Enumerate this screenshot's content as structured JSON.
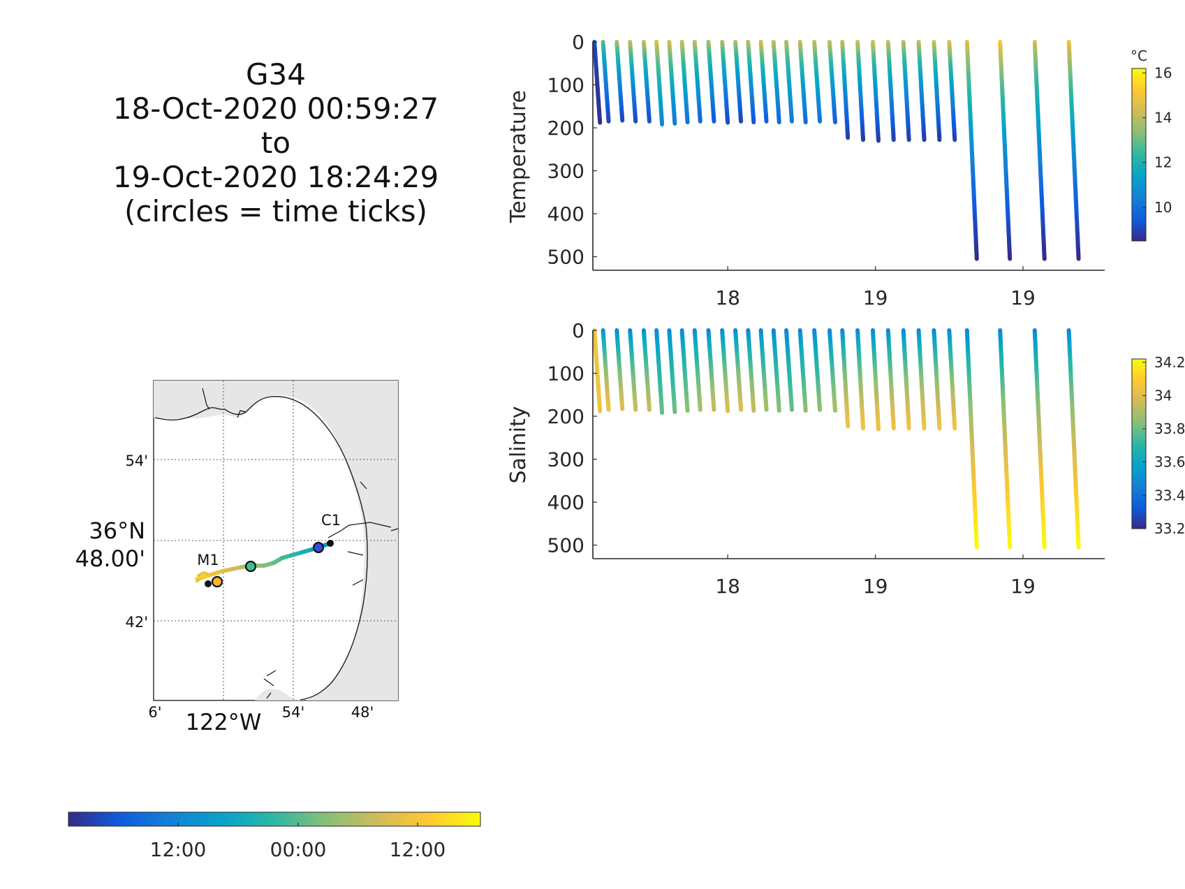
{
  "title_lines": [
    "G34",
    "18-Oct-2020 00:59:27",
    "to",
    "19-Oct-2020 18:24:29",
    "(circles = time ticks)"
  ],
  "colors": {
    "parula_stops": [
      "#352a87",
      "#0f5cdd",
      "#1481d6",
      "#06a4ca",
      "#2eb7a4",
      "#87bf77",
      "#d1bb59",
      "#fec832",
      "#f9fb0e"
    ]
  },
  "chart_data": [
    {
      "type": "scatter",
      "name": "temperature-section",
      "ylabel": "Temperature",
      "y_reversed": true,
      "ylim": [
        0,
        530
      ],
      "yticks": [
        0,
        100,
        200,
        300,
        400,
        500
      ],
      "xlim": [
        0,
        1
      ],
      "xtick_positions": [
        0.265,
        0.555,
        0.845
      ],
      "xtick_labels": [
        "18",
        "19",
        "19"
      ],
      "colorbar": {
        "unit": "°C",
        "range": [
          8.5,
          16.2
        ],
        "ticks": [
          10,
          12,
          14,
          16
        ]
      },
      "profiles": [
        {
          "x": 0.003,
          "bottom": 188,
          "surface_value": 9.2,
          "bottom_value": 8.6
        },
        {
          "x": 0.02,
          "bottom": 185,
          "surface_value": 13.3,
          "bottom_value": 9.0
        },
        {
          "x": 0.047,
          "bottom": 183,
          "surface_value": 14.2,
          "bottom_value": 9.0
        },
        {
          "x": 0.073,
          "bottom": 185,
          "surface_value": 14.6,
          "bottom_value": 9.1
        },
        {
          "x": 0.1,
          "bottom": 185,
          "surface_value": 14.7,
          "bottom_value": 9.2
        },
        {
          "x": 0.125,
          "bottom": 192,
          "surface_value": 14.9,
          "bottom_value": 10.5
        },
        {
          "x": 0.15,
          "bottom": 190,
          "surface_value": 14.8,
          "bottom_value": 10.2
        },
        {
          "x": 0.175,
          "bottom": 187,
          "surface_value": 14.6,
          "bottom_value": 10.1
        },
        {
          "x": 0.2,
          "bottom": 185,
          "surface_value": 14.4,
          "bottom_value": 9.8
        },
        {
          "x": 0.227,
          "bottom": 185,
          "surface_value": 14.2,
          "bottom_value": 9.4
        },
        {
          "x": 0.254,
          "bottom": 188,
          "surface_value": 14.3,
          "bottom_value": 9.1
        },
        {
          "x": 0.28,
          "bottom": 185,
          "surface_value": 14.4,
          "bottom_value": 9.0
        },
        {
          "x": 0.305,
          "bottom": 187,
          "surface_value": 14.5,
          "bottom_value": 9.3
        },
        {
          "x": 0.33,
          "bottom": 185,
          "surface_value": 15.0,
          "bottom_value": 9.5
        },
        {
          "x": 0.355,
          "bottom": 187,
          "surface_value": 14.5,
          "bottom_value": 9.8
        },
        {
          "x": 0.38,
          "bottom": 185,
          "surface_value": 14.3,
          "bottom_value": 10.2
        },
        {
          "x": 0.407,
          "bottom": 187,
          "surface_value": 14.6,
          "bottom_value": 9.9
        },
        {
          "x": 0.435,
          "bottom": 185,
          "surface_value": 14.5,
          "bottom_value": 10.1
        },
        {
          "x": 0.465,
          "bottom": 187,
          "surface_value": 14.7,
          "bottom_value": 9.6
        },
        {
          "x": 0.49,
          "bottom": 223,
          "surface_value": 14.6,
          "bottom_value": 8.9
        },
        {
          "x": 0.52,
          "bottom": 228,
          "surface_value": 14.8,
          "bottom_value": 8.8
        },
        {
          "x": 0.55,
          "bottom": 230,
          "surface_value": 14.9,
          "bottom_value": 8.8
        },
        {
          "x": 0.58,
          "bottom": 228,
          "surface_value": 14.7,
          "bottom_value": 8.9
        },
        {
          "x": 0.61,
          "bottom": 228,
          "surface_value": 14.5,
          "bottom_value": 8.9
        },
        {
          "x": 0.64,
          "bottom": 228,
          "surface_value": 14.6,
          "bottom_value": 8.8
        },
        {
          "x": 0.67,
          "bottom": 228,
          "surface_value": 14.8,
          "bottom_value": 8.8
        },
        {
          "x": 0.7,
          "bottom": 228,
          "surface_value": 15.2,
          "bottom_value": 8.9
        },
        {
          "x": 0.735,
          "bottom": 505,
          "surface_value": 15.0,
          "bottom_value": 8.5
        },
        {
          "x": 0.8,
          "bottom": 505,
          "surface_value": 15.5,
          "bottom_value": 8.5
        },
        {
          "x": 0.868,
          "bottom": 505,
          "surface_value": 14.7,
          "bottom_value": 8.5
        },
        {
          "x": 0.935,
          "bottom": 505,
          "surface_value": 15.3,
          "bottom_value": 8.5
        }
      ]
    },
    {
      "type": "scatter",
      "name": "salinity-section",
      "ylabel": "Salinity",
      "y_reversed": true,
      "ylim": [
        0,
        530
      ],
      "yticks": [
        0,
        100,
        200,
        300,
        400,
        500
      ],
      "xlim": [
        0,
        1
      ],
      "xtick_positions": [
        0.265,
        0.555,
        0.845
      ],
      "xtick_labels": [
        "18",
        "19",
        "19"
      ],
      "colorbar": {
        "unit": "",
        "range": [
          33.2,
          34.22
        ],
        "ticks": [
          33.2,
          33.4,
          33.6,
          33.8,
          34,
          34.2
        ],
        "tick_labels": [
          "33.2",
          "33.4",
          "33.6",
          "33.8",
          "34",
          "34.2"
        ]
      },
      "profiles": [
        {
          "x": 0.003,
          "bottom": 188,
          "surface_value": 34.05,
          "bottom_value": 34.05
        },
        {
          "x": 0.02,
          "bottom": 185,
          "surface_value": 33.45,
          "bottom_value": 34.05
        },
        {
          "x": 0.047,
          "bottom": 183,
          "surface_value": 33.42,
          "bottom_value": 34.0
        },
        {
          "x": 0.073,
          "bottom": 185,
          "surface_value": 33.42,
          "bottom_value": 33.95
        },
        {
          "x": 0.1,
          "bottom": 185,
          "surface_value": 33.45,
          "bottom_value": 33.95
        },
        {
          "x": 0.125,
          "bottom": 192,
          "surface_value": 33.45,
          "bottom_value": 33.8
        },
        {
          "x": 0.15,
          "bottom": 190,
          "surface_value": 33.45,
          "bottom_value": 33.8
        },
        {
          "x": 0.175,
          "bottom": 187,
          "surface_value": 33.45,
          "bottom_value": 33.85
        },
        {
          "x": 0.2,
          "bottom": 185,
          "surface_value": 33.45,
          "bottom_value": 33.9
        },
        {
          "x": 0.227,
          "bottom": 185,
          "surface_value": 33.42,
          "bottom_value": 33.95
        },
        {
          "x": 0.254,
          "bottom": 188,
          "surface_value": 33.42,
          "bottom_value": 34.0
        },
        {
          "x": 0.28,
          "bottom": 185,
          "surface_value": 33.42,
          "bottom_value": 34.0
        },
        {
          "x": 0.305,
          "bottom": 187,
          "surface_value": 33.42,
          "bottom_value": 33.95
        },
        {
          "x": 0.33,
          "bottom": 185,
          "surface_value": 33.42,
          "bottom_value": 33.9
        },
        {
          "x": 0.355,
          "bottom": 187,
          "surface_value": 33.42,
          "bottom_value": 33.85
        },
        {
          "x": 0.38,
          "bottom": 185,
          "surface_value": 33.42,
          "bottom_value": 33.8
        },
        {
          "x": 0.407,
          "bottom": 187,
          "surface_value": 33.42,
          "bottom_value": 33.85
        },
        {
          "x": 0.435,
          "bottom": 185,
          "surface_value": 33.42,
          "bottom_value": 33.85
        },
        {
          "x": 0.465,
          "bottom": 187,
          "surface_value": 33.42,
          "bottom_value": 33.9
        },
        {
          "x": 0.49,
          "bottom": 223,
          "surface_value": 33.42,
          "bottom_value": 34.05
        },
        {
          "x": 0.52,
          "bottom": 228,
          "surface_value": 33.42,
          "bottom_value": 34.05
        },
        {
          "x": 0.55,
          "bottom": 230,
          "surface_value": 33.42,
          "bottom_value": 34.05
        },
        {
          "x": 0.58,
          "bottom": 228,
          "surface_value": 33.42,
          "bottom_value": 34.05
        },
        {
          "x": 0.61,
          "bottom": 228,
          "surface_value": 33.42,
          "bottom_value": 34.05
        },
        {
          "x": 0.64,
          "bottom": 228,
          "surface_value": 33.42,
          "bottom_value": 34.05
        },
        {
          "x": 0.67,
          "bottom": 228,
          "surface_value": 33.42,
          "bottom_value": 34.05
        },
        {
          "x": 0.7,
          "bottom": 228,
          "surface_value": 33.42,
          "bottom_value": 34.05
        },
        {
          "x": 0.735,
          "bottom": 505,
          "surface_value": 33.42,
          "bottom_value": 34.22
        },
        {
          "x": 0.8,
          "bottom": 505,
          "surface_value": 33.42,
          "bottom_value": 34.22
        },
        {
          "x": 0.868,
          "bottom": 505,
          "surface_value": 33.42,
          "bottom_value": 34.22
        },
        {
          "x": 0.935,
          "bottom": 505,
          "surface_value": 33.42,
          "bottom_value": 34.22
        }
      ]
    },
    {
      "type": "scatter",
      "name": "track-map",
      "lat_tick_labels": [
        "54'",
        "36°N",
        "48.00'",
        "42'"
      ],
      "lon_tick_labels": [
        "6'",
        "122°W",
        "54'",
        "48'"
      ],
      "station_labels": [
        "M1",
        "C1"
      ],
      "grid": true,
      "time_colorbar": {
        "tick_labels": [
          "12:00",
          "00:00",
          "12:00"
        ]
      }
    }
  ]
}
